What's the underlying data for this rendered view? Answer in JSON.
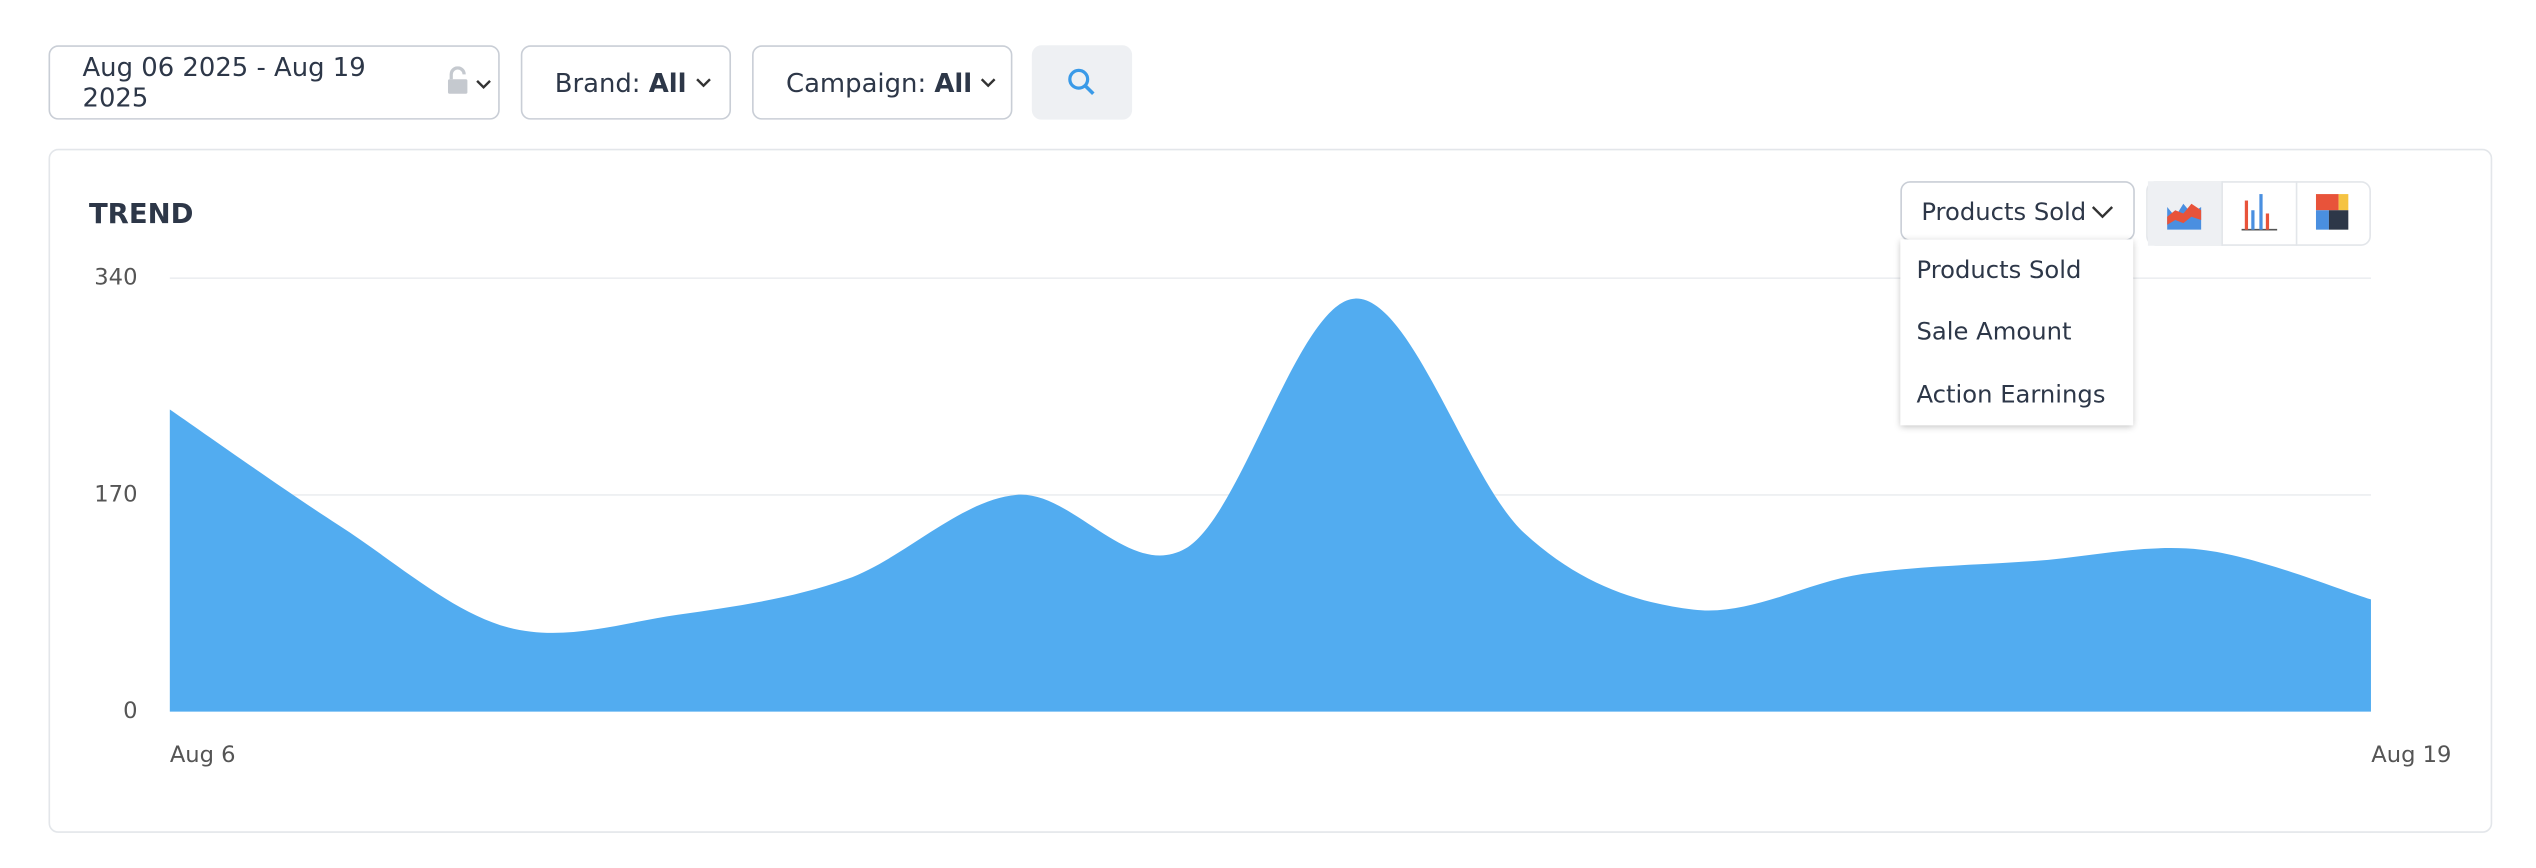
{
  "filters": {
    "date_range": "Aug 06 2025 - Aug 19 2025",
    "brand_label": "Brand:",
    "brand_value": "All",
    "campaign_label": "Campaign:",
    "campaign_value": "All"
  },
  "metric_select": {
    "selected": "Products Sold",
    "options": [
      "Products Sold",
      "Sale Amount",
      "Action Earnings"
    ]
  },
  "chart_data": {
    "type": "area",
    "title": "TREND",
    "categories": [
      "Aug 6",
      null,
      null,
      null,
      null,
      null,
      null,
      null,
      null,
      null,
      null,
      null,
      null,
      "Aug 19"
    ],
    "values": [
      237,
      146,
      66,
      76,
      104,
      170,
      128,
      324,
      140,
      80,
      108,
      118,
      127,
      88
    ],
    "color": "#52acf0",
    "ylim": [
      0,
      340
    ],
    "yticks": [
      0,
      170,
      340
    ],
    "grid": true
  }
}
